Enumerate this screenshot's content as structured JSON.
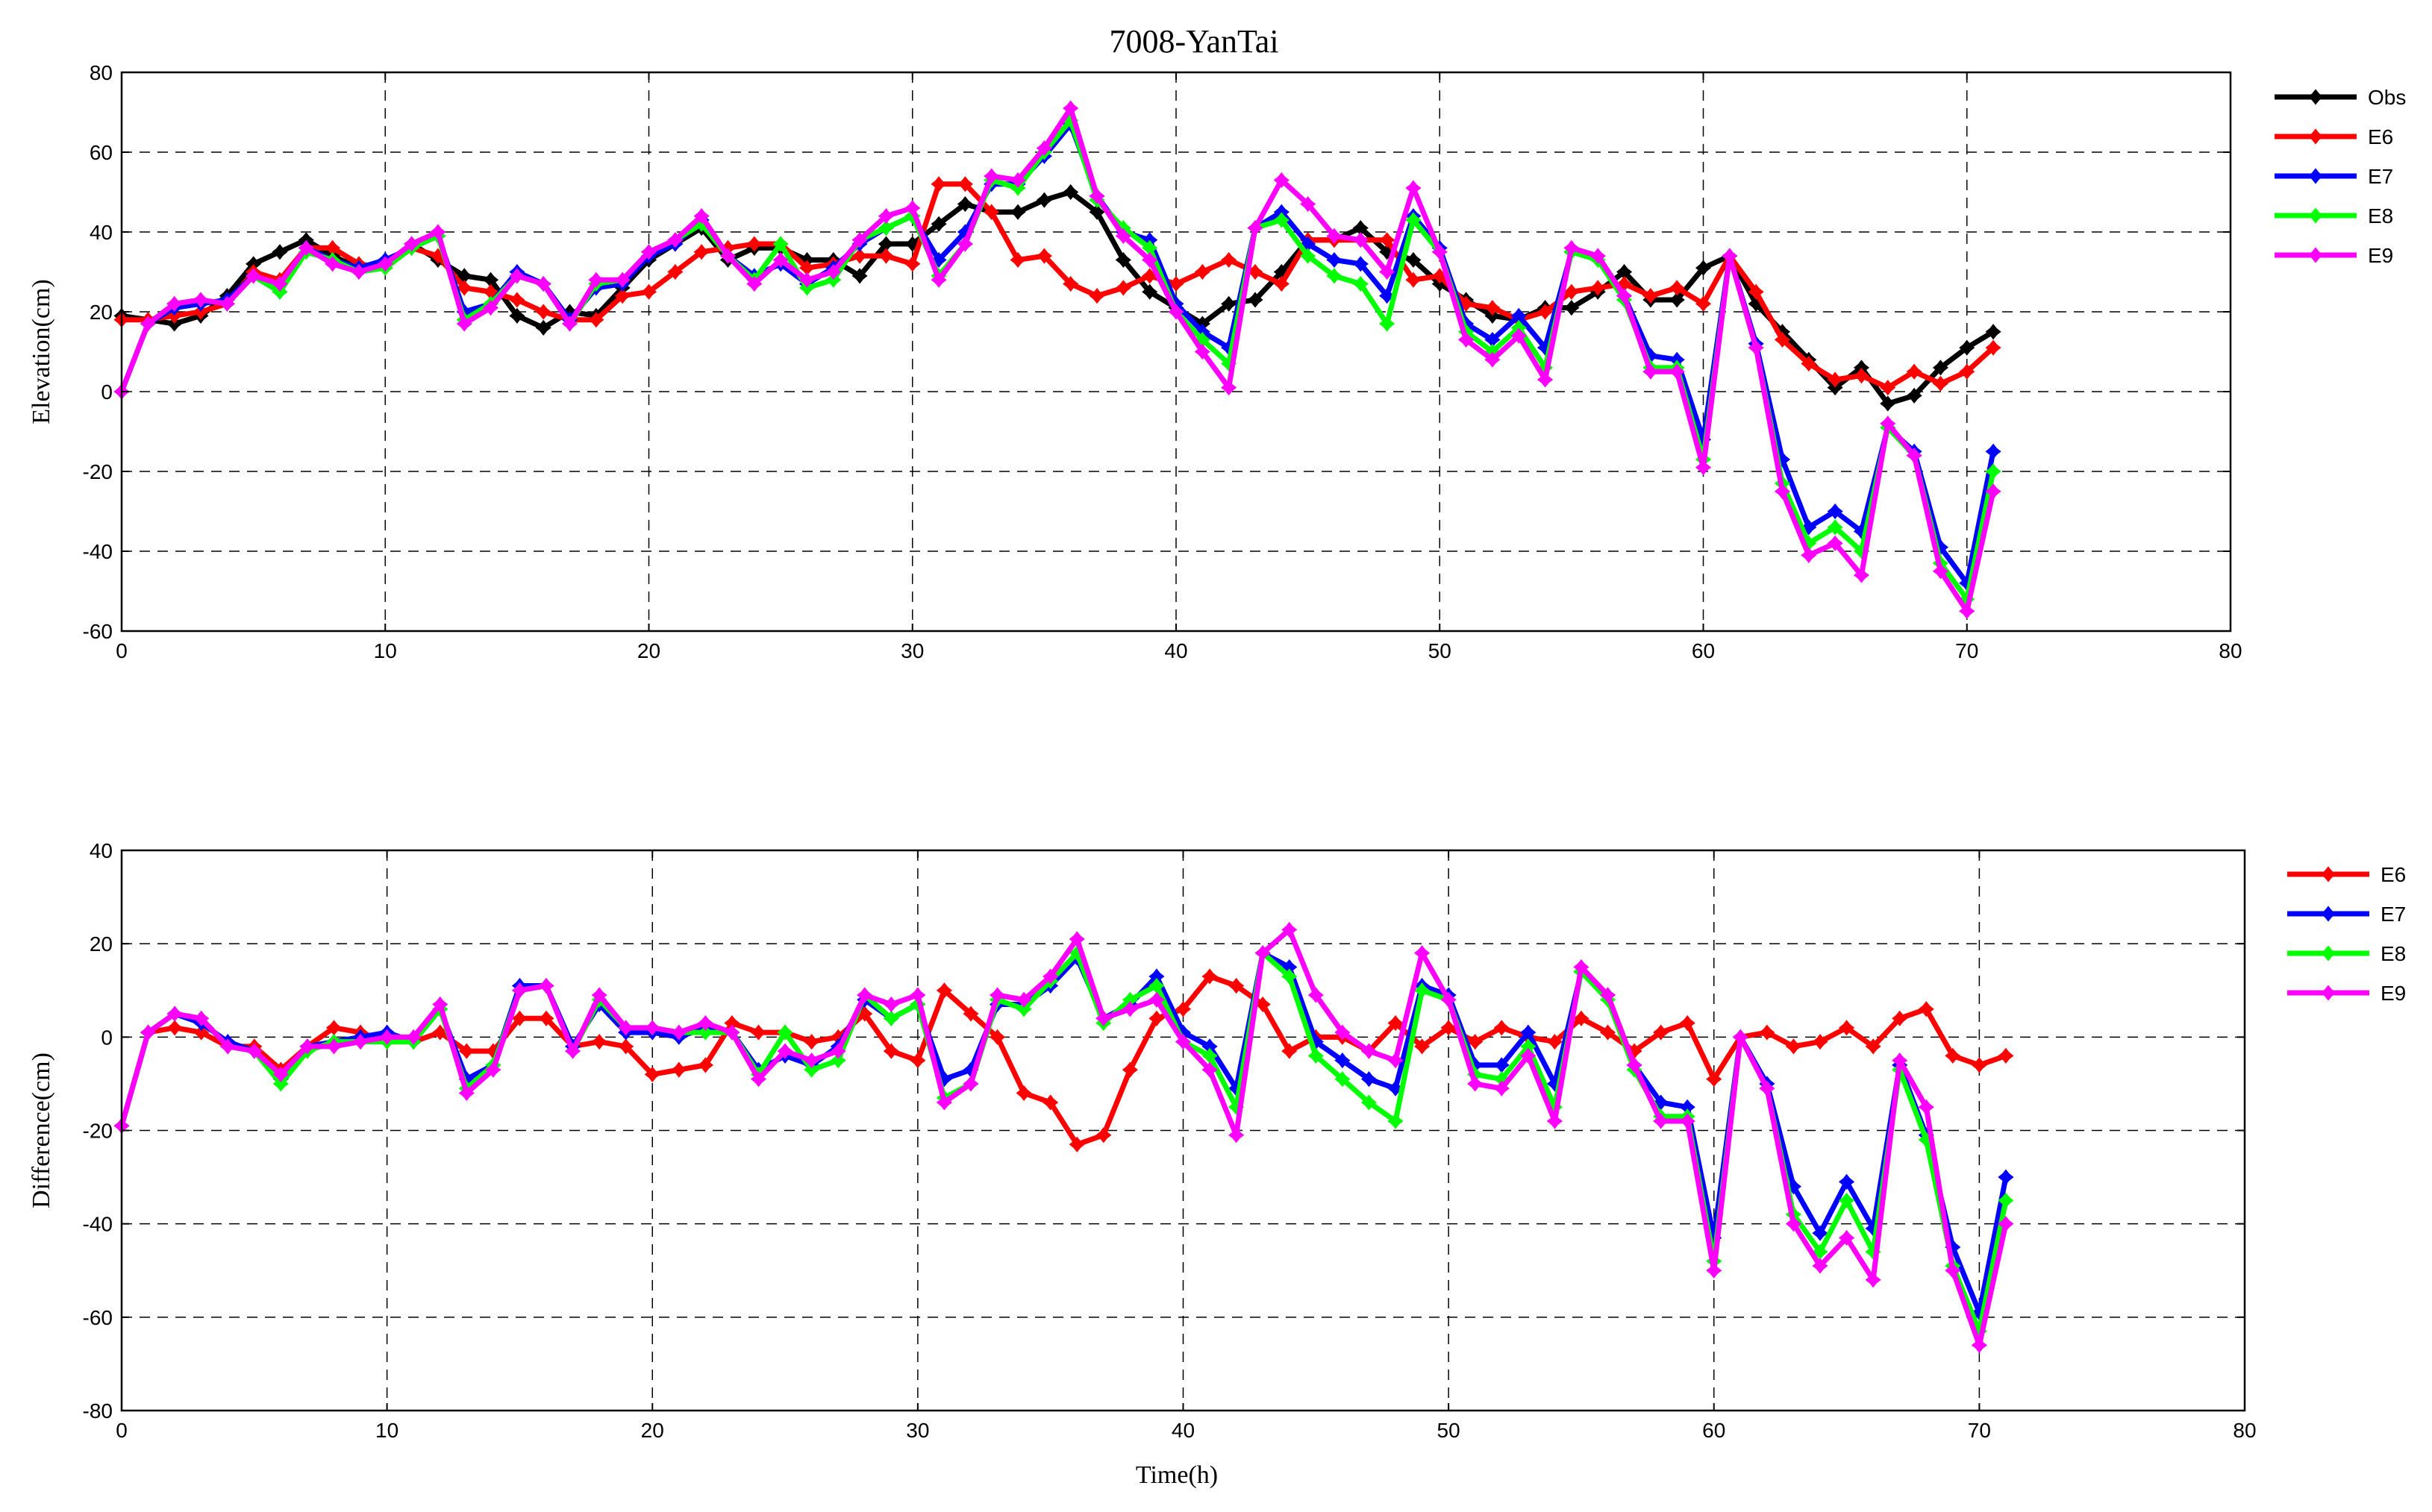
{
  "title": "7008-YanTai",
  "xlabel": "Time(h)",
  "chart_data": [
    {
      "type": "line",
      "ylabel": "Elevation(cm)",
      "xlim": [
        0,
        80
      ],
      "ylim": [
        -60,
        80
      ],
      "xticks": [
        0,
        10,
        20,
        30,
        40,
        50,
        60,
        70,
        80
      ],
      "yticks": [
        -60,
        -40,
        -20,
        0,
        20,
        40,
        60,
        80
      ],
      "grid": true,
      "legend": "right-top",
      "x": [
        0,
        1,
        2,
        3,
        4,
        5,
        6,
        7,
        8,
        9,
        10,
        11,
        12,
        13,
        14,
        15,
        16,
        17,
        18,
        19,
        20,
        21,
        22,
        23,
        24,
        25,
        26,
        27,
        28,
        29,
        30,
        31,
        32,
        33,
        34,
        35,
        36,
        37,
        38,
        39,
        40,
        41,
        42,
        43,
        44,
        45,
        46,
        47,
        48,
        49,
        50,
        51,
        52,
        53,
        54,
        55,
        56,
        57,
        58,
        59,
        60,
        61,
        62,
        63,
        64,
        65,
        66,
        67,
        68,
        69,
        70,
        71
      ],
      "series": [
        {
          "name": "Obs",
          "color": "#000000",
          "values": [
            19,
            18,
            17,
            19,
            24,
            32,
            35,
            38,
            34,
            31,
            32,
            37,
            33,
            29,
            28,
            19,
            16,
            20,
            19,
            26,
            33,
            37,
            41,
            33,
            36,
            36,
            33,
            33,
            29,
            37,
            37,
            42,
            47,
            45,
            45,
            48,
            50,
            45,
            33,
            25,
            21,
            17,
            22,
            23,
            30,
            38,
            38,
            41,
            35,
            33,
            27,
            23,
            19,
            18,
            21,
            21,
            25,
            30,
            23,
            23,
            31,
            34,
            22,
            15,
            8,
            1,
            6,
            -3,
            -1,
            6,
            11,
            15
          ]
        },
        {
          "name": "E6",
          "color": "#ff0000",
          "values": [
            18,
            18,
            19,
            20,
            22,
            30,
            28,
            36,
            36,
            32,
            31,
            36,
            34,
            26,
            25,
            23,
            20,
            18,
            18,
            24,
            25,
            30,
            35,
            36,
            37,
            37,
            31,
            32,
            34,
            34,
            32,
            52,
            52,
            45,
            33,
            34,
            27,
            24,
            26,
            29,
            27,
            30,
            33,
            30,
            27,
            38,
            38,
            38,
            38,
            28,
            29,
            22,
            21,
            18,
            20,
            25,
            26,
            27,
            24,
            26,
            22,
            34,
            25,
            13,
            7,
            3,
            4,
            1,
            5,
            2,
            5,
            11
          ]
        },
        {
          "name": "E7",
          "color": "#0000ff",
          "values": [
            0,
            17,
            21,
            22,
            23,
            29,
            25,
            36,
            33,
            31,
            33,
            36,
            39,
            20,
            22,
            30,
            27,
            18,
            26,
            27,
            34,
            37,
            43,
            34,
            29,
            32,
            27,
            31,
            37,
            41,
            44,
            33,
            40,
            52,
            52,
            59,
            67,
            49,
            40,
            38,
            22,
            15,
            11,
            41,
            45,
            37,
            33,
            32,
            24,
            44,
            36,
            17,
            13,
            19,
            11,
            35,
            34,
            24,
            9,
            8,
            -12,
            34,
            12,
            -17,
            -34,
            -30,
            -35,
            -9,
            -15,
            -39,
            -48,
            -15
          ]
        },
        {
          "name": "E8",
          "color": "#00ff00",
          "values": [
            0,
            17,
            22,
            23,
            22,
            29,
            25,
            35,
            33,
            30,
            31,
            36,
            39,
            18,
            22,
            29,
            27,
            17,
            27,
            28,
            35,
            38,
            42,
            34,
            28,
            37,
            26,
            28,
            38,
            41,
            44,
            29,
            37,
            53,
            51,
            60,
            68,
            48,
            41,
            36,
            20,
            13,
            7,
            41,
            43,
            34,
            29,
            27,
            17,
            43,
            35,
            15,
            10,
            16,
            6,
            35,
            33,
            23,
            6,
            6,
            -17,
            34,
            11,
            -23,
            -38,
            -34,
            -40,
            -9,
            -16,
            -43,
            -52,
            -20
          ]
        },
        {
          "name": "E9",
          "color": "#ff00ff",
          "values": [
            0,
            17,
            22,
            23,
            22,
            29,
            27,
            36,
            32,
            30,
            32,
            37,
            40,
            17,
            21,
            29,
            27,
            17,
            28,
            28,
            35,
            38,
            44,
            34,
            27,
            33,
            28,
            30,
            38,
            44,
            46,
            28,
            37,
            54,
            53,
            61,
            71,
            49,
            39,
            33,
            20,
            10,
            1,
            41,
            53,
            47,
            39,
            38,
            30,
            51,
            35,
            13,
            8,
            14,
            3,
            36,
            34,
            24,
            5,
            5,
            -19,
            34,
            11,
            -25,
            -41,
            -38,
            -46,
            -8,
            -16,
            -45,
            -55,
            -25
          ]
        }
      ]
    },
    {
      "type": "line",
      "ylabel": "Difference(cm)",
      "xlim": [
        0,
        80
      ],
      "ylim": [
        -80,
        40
      ],
      "xticks": [
        0,
        10,
        20,
        30,
        40,
        50,
        60,
        70,
        80
      ],
      "yticks": [
        -80,
        -60,
        -40,
        -20,
        0,
        20,
        40
      ],
      "grid": true,
      "legend": "right-top",
      "x": [
        0,
        1,
        2,
        3,
        4,
        5,
        6,
        7,
        8,
        9,
        10,
        11,
        12,
        13,
        14,
        15,
        16,
        17,
        18,
        19,
        20,
        21,
        22,
        23,
        24,
        25,
        26,
        27,
        28,
        29,
        30,
        31,
        32,
        33,
        34,
        35,
        36,
        37,
        38,
        39,
        40,
        41,
        42,
        43,
        44,
        45,
        46,
        47,
        48,
        49,
        50,
        51,
        52,
        53,
        54,
        55,
        56,
        57,
        58,
        59,
        60,
        61,
        62,
        63,
        64,
        65,
        66,
        67,
        68,
        69,
        70,
        71
      ],
      "series": [
        {
          "name": "E6",
          "color": "#ff0000",
          "values": [
            -19,
            1,
            2,
            1,
            -2,
            -2,
            -7,
            -2,
            2,
            1,
            -1,
            -1,
            1,
            -3,
            -3,
            4,
            4,
            -2,
            -1,
            -2,
            -8,
            -7,
            -6,
            3,
            1,
            1,
            -1,
            0,
            5,
            -3,
            -5,
            10,
            5,
            0,
            -12,
            -14,
            -23,
            -21,
            -7,
            4,
            6,
            13,
            11,
            7,
            -3,
            0,
            0,
            -3,
            3,
            -2,
            2,
            -1,
            2,
            0,
            -1,
            4,
            1,
            -3,
            1,
            3,
            -9,
            0,
            1,
            -2,
            -1,
            2,
            -2,
            4,
            6,
            -4,
            -6,
            -4
          ]
        },
        {
          "name": "E7",
          "color": "#0000ff",
          "values": [
            -19,
            1,
            5,
            3,
            -1,
            -3,
            -9,
            -2,
            -1,
            0,
            1,
            -1,
            6,
            -9,
            -6,
            11,
            11,
            -2,
            7,
            1,
            1,
            0,
            2,
            1,
            -7,
            -4,
            -6,
            -2,
            8,
            4,
            7,
            -9,
            -7,
            7,
            7,
            11,
            17,
            4,
            7,
            13,
            1,
            -2,
            -11,
            18,
            15,
            -1,
            -5,
            -9,
            -11,
            11,
            9,
            -6,
            -6,
            1,
            -10,
            14,
            9,
            -6,
            -14,
            -15,
            -43,
            0,
            -10,
            -32,
            -42,
            -31,
            -41,
            -6,
            -21,
            -45,
            -59,
            -30
          ]
        },
        {
          "name": "E8",
          "color": "#00ff00",
          "values": [
            -19,
            1,
            5,
            4,
            -2,
            -3,
            -10,
            -3,
            -1,
            -1,
            -1,
            -1,
            6,
            -11,
            -6,
            10,
            11,
            -3,
            8,
            2,
            2,
            1,
            1,
            1,
            -8,
            1,
            -7,
            -5,
            9,
            4,
            7,
            -13,
            -10,
            8,
            6,
            12,
            18,
            3,
            8,
            11,
            -1,
            -4,
            -15,
            18,
            13,
            -4,
            -9,
            -14,
            -18,
            10,
            8,
            -8,
            -9,
            -2,
            -15,
            14,
            8,
            -7,
            -17,
            -17,
            -48,
            0,
            -11,
            -38,
            -46,
            -35,
            -46,
            -7,
            -22,
            -49,
            -63,
            -35
          ]
        },
        {
          "name": "E9",
          "color": "#ff00ff",
          "values": [
            -19,
            1,
            5,
            4,
            -2,
            -3,
            -8,
            -2,
            -2,
            -1,
            0,
            0,
            7,
            -12,
            -7,
            10,
            11,
            -3,
            9,
            2,
            2,
            1,
            3,
            1,
            -9,
            -3,
            -5,
            -3,
            9,
            7,
            9,
            -14,
            -10,
            9,
            8,
            13,
            21,
            4,
            6,
            8,
            -1,
            -7,
            -21,
            18,
            23,
            9,
            1,
            -3,
            -5,
            18,
            8,
            -10,
            -11,
            -4,
            -18,
            15,
            9,
            -6,
            -18,
            -18,
            -50,
            0,
            -11,
            -40,
            -49,
            -43,
            -52,
            -5,
            -15,
            -50,
            -66,
            -40
          ]
        }
      ]
    }
  ]
}
